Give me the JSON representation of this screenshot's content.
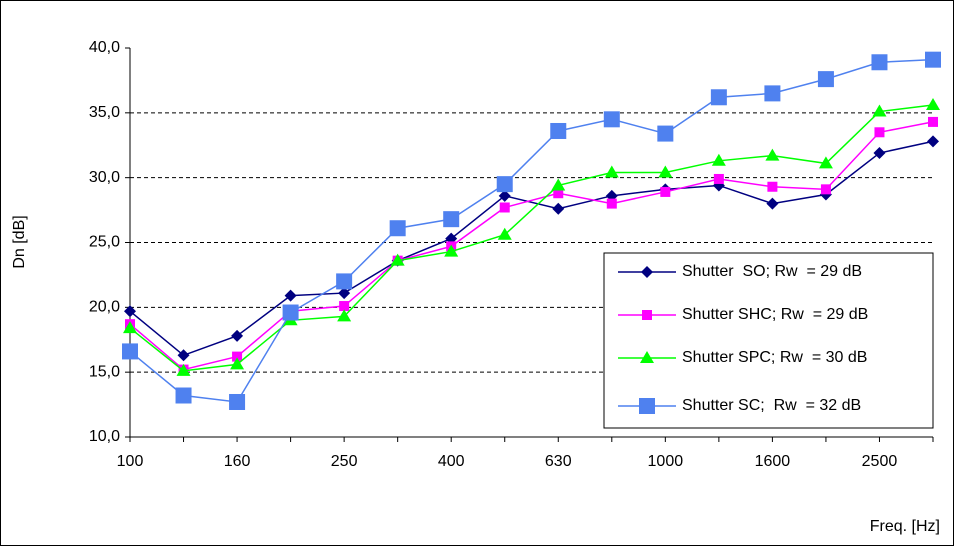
{
  "chart_data": {
    "type": "line",
    "x_label": "Freq. [Hz]",
    "y_label": "Dn [dB]",
    "categories": [
      "100",
      null,
      "160",
      null,
      "250",
      null,
      "400",
      null,
      "630",
      null,
      "1000",
      null,
      "1600",
      null,
      "2500",
      null
    ],
    "ylim": [
      10,
      40
    ],
    "yticks": [
      {
        "value": 10,
        "label": "10,0"
      },
      {
        "value": 15,
        "label": "15,0"
      },
      {
        "value": 20,
        "label": "20,0"
      },
      {
        "value": 25,
        "label": "25,0"
      },
      {
        "value": 30,
        "label": "30,0"
      },
      {
        "value": 35,
        "label": "35,0"
      },
      {
        "value": 40,
        "label": "40,0"
      }
    ],
    "grid": true,
    "legend": "lower right",
    "series": [
      {
        "name": "Shutter  SO; Rw  = 29 dB",
        "color": "#000080",
        "marker": "diamond",
        "values": [
          19.7,
          16.3,
          17.8,
          20.9,
          21.1,
          23.6,
          25.3,
          28.6,
          27.6,
          28.6,
          29.1,
          29.4,
          28.0,
          28.7,
          31.9,
          32.8
        ]
      },
      {
        "name": "Shutter SHC; Rw  = 29 dB",
        "color": "#ff00ff",
        "marker": "square",
        "values": [
          18.7,
          15.2,
          16.2,
          19.7,
          20.1,
          23.6,
          24.7,
          27.7,
          28.8,
          28.0,
          28.9,
          29.9,
          29.3,
          29.1,
          33.5,
          34.3
        ]
      },
      {
        "name": "Shutter SPC; Rw  = 30 dB",
        "color": "#00ff00",
        "marker": "triangle",
        "values": [
          18.4,
          15.1,
          15.6,
          19.0,
          19.3,
          23.6,
          24.3,
          25.6,
          29.4,
          30.4,
          30.4,
          31.3,
          31.7,
          31.1,
          35.1,
          35.6
        ]
      },
      {
        "name": "Shutter SC;  Rw  = 32 dB",
        "color": "#4f81ef",
        "marker": "big-square",
        "values": [
          16.6,
          13.2,
          12.7,
          19.6,
          22.0,
          26.1,
          26.8,
          29.5,
          33.6,
          34.5,
          33.4,
          36.2,
          36.5,
          37.6,
          38.9,
          39.1
        ]
      }
    ]
  }
}
